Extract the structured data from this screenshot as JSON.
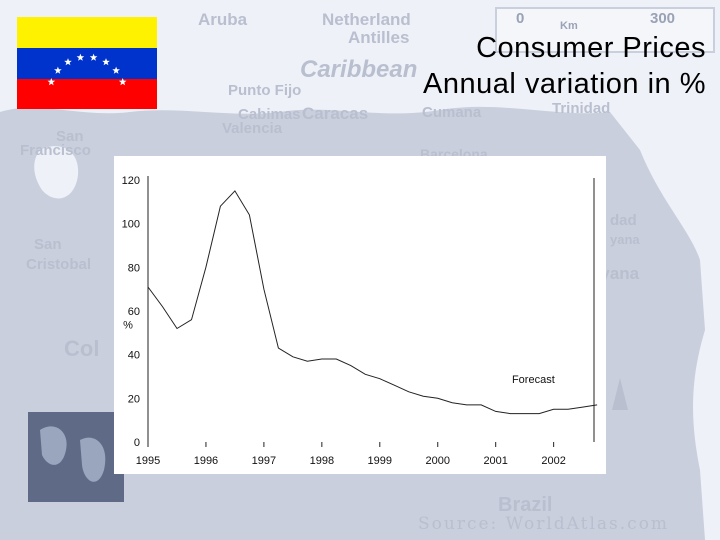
{
  "slide": {
    "title_line1": "Consumer Prices",
    "title_line2": "Annual variation in %"
  },
  "background_map": {
    "labels": [
      {
        "text": "Aruba",
        "size": 17
      },
      {
        "text": "Netherland",
        "size": 17
      },
      {
        "text": "Antilles",
        "size": 17
      },
      {
        "text": "Caribbean",
        "size": 24
      },
      {
        "text": "Punto Fijo",
        "size": 15
      },
      {
        "text": "Cabimas",
        "size": 15
      },
      {
        "text": "Caracas",
        "size": 17
      },
      {
        "text": "Cumana",
        "size": 15
      },
      {
        "text": "Trinidad",
        "size": 15
      },
      {
        "text": "Valencia",
        "size": 15
      },
      {
        "text": "San",
        "size": 15
      },
      {
        "text": "Francisco",
        "size": 15
      },
      {
        "text": "Barcelona",
        "size": 14
      },
      {
        "text": "San",
        "size": 15
      },
      {
        "text": "Cristobal",
        "size": 15
      },
      {
        "text": "Col",
        "size": 22
      },
      {
        "text": "dad",
        "size": 15
      },
      {
        "text": "yana",
        "size": 13
      },
      {
        "text": "uyana",
        "size": 17
      },
      {
        "text": "Brazil",
        "size": 20
      }
    ],
    "scale_bar": {
      "left": "0",
      "unit": "Km",
      "right": "300"
    },
    "source": "Source: WorldAtlas.com",
    "colors": {
      "land": "#c9cfdc",
      "water": "#eef1f8",
      "text": "#b9bfcf"
    }
  },
  "flag": {
    "icon": "venezuela-flag-icon",
    "colors": {
      "yellow": "#fff200",
      "blue": "#0033cc",
      "red": "#ff0000",
      "stars": "#ffffff"
    }
  },
  "chart_data": {
    "type": "line",
    "title": "",
    "xlabel": "",
    "ylabel": "%",
    "x_ticks": [
      "1995",
      "1996",
      "1997",
      "1998",
      "1999",
      "2000",
      "2001",
      "2002"
    ],
    "y_ticks": [
      0,
      20,
      40,
      60,
      80,
      100,
      120
    ],
    "xlim": [
      1995,
      2002.8
    ],
    "ylim": [
      0,
      120
    ],
    "grid": false,
    "forecast_start": 2002.0,
    "annotations": [
      {
        "text": "Forecast",
        "x": 2001.65,
        "y": 27
      }
    ],
    "series": [
      {
        "x": [
          1995.0,
          1995.25,
          1995.5,
          1995.75,
          1996.0,
          1996.25,
          1996.5,
          1996.75,
          1997.0,
          1997.25,
          1997.5,
          1997.75,
          1998.0,
          1998.25,
          1998.5,
          1998.75,
          1999.0,
          1999.25,
          1999.5,
          1999.75,
          2000.0,
          2000.25,
          2000.5,
          2000.75,
          2001.0,
          2001.25,
          2001.5,
          2001.75,
          2002.0,
          2002.25,
          2002.5,
          2002.75
        ],
        "y": [
          71,
          62,
          52,
          56,
          80,
          108,
          115,
          104,
          70,
          43,
          39,
          37,
          38,
          38,
          35,
          31,
          29,
          26,
          23,
          21,
          20,
          18,
          17,
          17,
          14,
          13,
          13,
          13,
          15,
          15,
          16,
          17
        ],
        "color": "#222222"
      }
    ]
  }
}
